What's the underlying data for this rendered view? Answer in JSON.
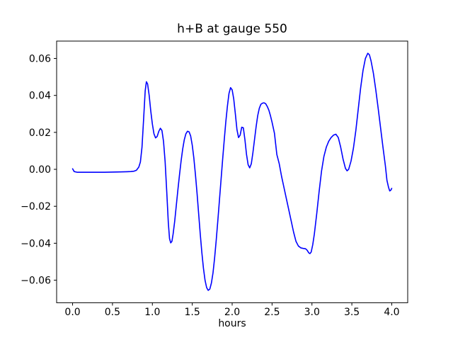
{
  "figure": {
    "background": "#ffffff",
    "text_color": "#000000"
  },
  "chart_data": {
    "type": "line",
    "title": "h+B at gauge 550",
    "xlabel": "hours",
    "ylabel": "",
    "grid": false,
    "legend": "none",
    "xlim": [
      -0.2,
      4.2
    ],
    "ylim": [
      -0.0722,
      0.0694
    ],
    "x_ticks": [
      0.0,
      0.5,
      1.0,
      1.5,
      2.0,
      2.5,
      3.0,
      3.5,
      4.0
    ],
    "x_tick_labels": [
      "0.0",
      "0.5",
      "1.0",
      "1.5",
      "2.0",
      "2.5",
      "3.0",
      "3.5",
      "4.0"
    ],
    "y_ticks": [
      0.06,
      0.04,
      0.02,
      0.0,
      -0.02,
      -0.04,
      -0.06
    ],
    "y_tick_labels": [
      "0.06",
      "0.04",
      "0.02",
      "0.00",
      "−0.02",
      "−0.04",
      "−0.06"
    ],
    "series": [
      {
        "name": "h+B",
        "color": "#0000ff",
        "line_width": 1.6,
        "points": [
          [
            0.0,
            0.0003
          ],
          [
            0.02,
            -0.0012
          ],
          [
            0.06,
            -0.0016
          ],
          [
            0.12,
            -0.0016
          ],
          [
            0.2,
            -0.0016
          ],
          [
            0.3,
            -0.0016
          ],
          [
            0.4,
            -0.0016
          ],
          [
            0.5,
            -0.0015
          ],
          [
            0.6,
            -0.0014
          ],
          [
            0.68,
            -0.0013
          ],
          [
            0.73,
            -0.0012
          ],
          [
            0.77,
            -0.001
          ],
          [
            0.8,
            -0.0005
          ],
          [
            0.83,
            0.0012
          ],
          [
            0.85,
            0.004
          ],
          [
            0.87,
            0.012
          ],
          [
            0.89,
            0.027
          ],
          [
            0.91,
            0.0425
          ],
          [
            0.925,
            0.0474
          ],
          [
            0.94,
            0.0462
          ],
          [
            0.96,
            0.04
          ],
          [
            0.98,
            0.0315
          ],
          [
            1.0,
            0.0245
          ],
          [
            1.02,
            0.0192
          ],
          [
            1.04,
            0.017
          ],
          [
            1.06,
            0.0178
          ],
          [
            1.08,
            0.0205
          ],
          [
            1.1,
            0.0222
          ],
          [
            1.12,
            0.021
          ],
          [
            1.14,
            0.015
          ],
          [
            1.16,
            0.004
          ],
          [
            1.18,
            -0.012
          ],
          [
            1.2,
            -0.029
          ],
          [
            1.215,
            -0.0375
          ],
          [
            1.23,
            -0.0398
          ],
          [
            1.245,
            -0.039
          ],
          [
            1.26,
            -0.035
          ],
          [
            1.28,
            -0.028
          ],
          [
            1.3,
            -0.0195
          ],
          [
            1.32,
            -0.011
          ],
          [
            1.34,
            -0.003
          ],
          [
            1.36,
            0.0045
          ],
          [
            1.38,
            0.011
          ],
          [
            1.4,
            0.016
          ],
          [
            1.42,
            0.0192
          ],
          [
            1.44,
            0.0206
          ],
          [
            1.46,
            0.0203
          ],
          [
            1.48,
            0.018
          ],
          [
            1.5,
            0.013
          ],
          [
            1.52,
            0.006
          ],
          [
            1.54,
            -0.003
          ],
          [
            1.56,
            -0.013
          ],
          [
            1.58,
            -0.024
          ],
          [
            1.6,
            -0.035
          ],
          [
            1.62,
            -0.045
          ],
          [
            1.64,
            -0.0535
          ],
          [
            1.66,
            -0.06
          ],
          [
            1.68,
            -0.064
          ],
          [
            1.7,
            -0.0655
          ],
          [
            1.72,
            -0.0648
          ],
          [
            1.74,
            -0.0615
          ],
          [
            1.76,
            -0.056
          ],
          [
            1.78,
            -0.048
          ],
          [
            1.8,
            -0.0385
          ],
          [
            1.82,
            -0.028
          ],
          [
            1.84,
            -0.017
          ],
          [
            1.86,
            -0.006
          ],
          [
            1.88,
            0.005
          ],
          [
            1.9,
            0.0155
          ],
          [
            1.92,
            0.0255
          ],
          [
            1.94,
            0.034
          ],
          [
            1.96,
            0.041
          ],
          [
            1.98,
            0.0442
          ],
          [
            2.0,
            0.043
          ],
          [
            2.02,
            0.038
          ],
          [
            2.04,
            0.03
          ],
          [
            2.06,
            0.0215
          ],
          [
            2.08,
            0.0172
          ],
          [
            2.1,
            0.0185
          ],
          [
            2.12,
            0.0228
          ],
          [
            2.14,
            0.0225
          ],
          [
            2.16,
            0.016
          ],
          [
            2.18,
            0.008
          ],
          [
            2.2,
            0.0025
          ],
          [
            2.22,
            0.0008
          ],
          [
            2.24,
            0.003
          ],
          [
            2.26,
            0.009
          ],
          [
            2.28,
            0.016
          ],
          [
            2.3,
            0.023
          ],
          [
            2.32,
            0.029
          ],
          [
            2.34,
            0.033
          ],
          [
            2.36,
            0.0352
          ],
          [
            2.38,
            0.0358
          ],
          [
            2.4,
            0.036
          ],
          [
            2.42,
            0.0355
          ],
          [
            2.44,
            0.034
          ],
          [
            2.46,
            0.032
          ],
          [
            2.48,
            0.029
          ],
          [
            2.5,
            0.0255
          ],
          [
            2.53,
            0.0195
          ],
          [
            2.56,
            0.008
          ],
          [
            2.59,
            0.003
          ],
          [
            2.62,
            -0.004
          ],
          [
            2.65,
            -0.01
          ],
          [
            2.68,
            -0.016
          ],
          [
            2.71,
            -0.022
          ],
          [
            2.74,
            -0.028
          ],
          [
            2.77,
            -0.034
          ],
          [
            2.8,
            -0.039
          ],
          [
            2.83,
            -0.0415
          ],
          [
            2.86,
            -0.0425
          ],
          [
            2.89,
            -0.0428
          ],
          [
            2.92,
            -0.043
          ],
          [
            2.94,
            -0.0438
          ],
          [
            2.96,
            -0.0452
          ],
          [
            2.975,
            -0.0456
          ],
          [
            2.99,
            -0.0448
          ],
          [
            3.01,
            -0.0408
          ],
          [
            3.03,
            -0.035
          ],
          [
            3.06,
            -0.024
          ],
          [
            3.09,
            -0.012
          ],
          [
            3.12,
            -0.001
          ],
          [
            3.15,
            0.007
          ],
          [
            3.18,
            0.012
          ],
          [
            3.21,
            0.0152
          ],
          [
            3.24,
            0.0172
          ],
          [
            3.27,
            0.0185
          ],
          [
            3.3,
            0.019
          ],
          [
            3.33,
            0.0172
          ],
          [
            3.36,
            0.012
          ],
          [
            3.39,
            0.0055
          ],
          [
            3.42,
            0.0005
          ],
          [
            3.44,
            -0.0008
          ],
          [
            3.46,
            0.0
          ],
          [
            3.49,
            0.0045
          ],
          [
            3.52,
            0.0115
          ],
          [
            3.55,
            0.021
          ],
          [
            3.58,
            0.0325
          ],
          [
            3.61,
            0.044
          ],
          [
            3.64,
            0.0535
          ],
          [
            3.67,
            0.06
          ],
          [
            3.7,
            0.0628
          ],
          [
            3.72,
            0.062
          ],
          [
            3.74,
            0.0588
          ],
          [
            3.77,
            0.052
          ],
          [
            3.8,
            0.043
          ],
          [
            3.83,
            0.033
          ],
          [
            3.86,
            0.0225
          ],
          [
            3.89,
            0.012
          ],
          [
            3.92,
            0.002
          ],
          [
            3.94,
            -0.006
          ],
          [
            3.96,
            -0.0098
          ],
          [
            3.975,
            -0.0117
          ],
          [
            3.99,
            -0.0112
          ],
          [
            4.0,
            -0.0103
          ]
        ]
      }
    ]
  }
}
